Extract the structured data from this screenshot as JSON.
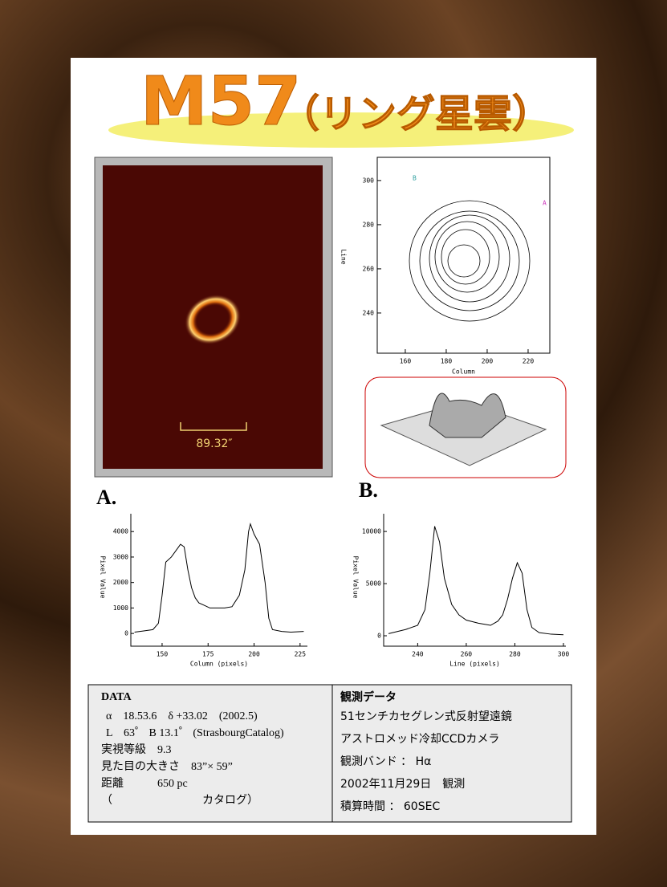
{
  "title": "M57",
  "subtitle": "（リング星雲）",
  "image": {
    "scale_label": "89.32″"
  },
  "contour": {
    "xlabel": "Column",
    "ylabel": "Line",
    "xlim": [
      146.3,
      230.6
    ],
    "ylim": [
      221.8,
      310.5
    ],
    "xticks": [
      160,
      180,
      200,
      220
    ],
    "yticks": [
      240,
      260,
      280,
      300
    ],
    "markers": [
      "A",
      "B"
    ]
  },
  "panel_labels": [
    "A.",
    "B."
  ],
  "chart_data": [
    {
      "type": "line",
      "xlabel": "Column (pixels)",
      "ylabel": "Pixel Value",
      "color": "#000000",
      "x": [
        135,
        140,
        145,
        148,
        150,
        152,
        155,
        158,
        160,
        162,
        164,
        166,
        168,
        170,
        173,
        176,
        180,
        184,
        188,
        192,
        195,
        197,
        198,
        200,
        203,
        206,
        208,
        210,
        215,
        220,
        227
      ],
      "values": [
        50,
        100,
        150,
        400,
        1500,
        2800,
        3000,
        3300,
        3500,
        3400,
        2500,
        1800,
        1400,
        1200,
        1100,
        1000,
        1000,
        1000,
        1050,
        1500,
        2500,
        4000,
        4300,
        3900,
        3500,
        2000,
        600,
        150,
        80,
        50,
        80
      ],
      "xlim": [
        133,
        229
      ],
      "ylim": [
        -500,
        4700
      ],
      "xticks": [
        150,
        175,
        200,
        225
      ],
      "yticks": [
        0,
        1000,
        2000,
        3000,
        4000
      ]
    },
    {
      "type": "line",
      "xlabel": "Line (pixels)",
      "ylabel": "Pixel Value",
      "color": "#000000",
      "x": [
        228,
        235,
        240,
        243,
        245,
        247,
        249,
        251,
        254,
        257,
        260,
        265,
        270,
        273,
        275,
        277,
        279,
        281,
        283,
        285,
        287,
        290,
        295,
        300
      ],
      "values": [
        200,
        600,
        1000,
        2500,
        6000,
        10500,
        9000,
        5500,
        3000,
        2000,
        1500,
        1200,
        1000,
        1400,
        2000,
        3500,
        5500,
        7000,
        6000,
        2500,
        800,
        300,
        150,
        100
      ],
      "xlim": [
        226,
        301
      ],
      "ylim": [
        -1000,
        11700
      ],
      "xticks": [
        240,
        260,
        280,
        300
      ],
      "yticks": [
        0,
        5000,
        10000
      ]
    }
  ],
  "data_box": {
    "heading": "DATA",
    "lines": [
      "α　18.53.6　δ +33.02　(2002.5)",
      "L　63゜ B 13.1゜ (StrasbourgCatalog)",
      "実視等級　9.3",
      "見た目の大きさ　83”× 59”",
      "距離　　　650 pc",
      "（　　　　　　　　カタログ）"
    ]
  },
  "observation_box": {
    "heading": "観測データ",
    "lines": [
      "51センチカセグレン式反射望遠鏡",
      "アストロメッド冷却CCDカメラ",
      "観測バンド ： Hα",
      "2002年11月29日　観測",
      "積算時間 ： 60SEC"
    ]
  }
}
